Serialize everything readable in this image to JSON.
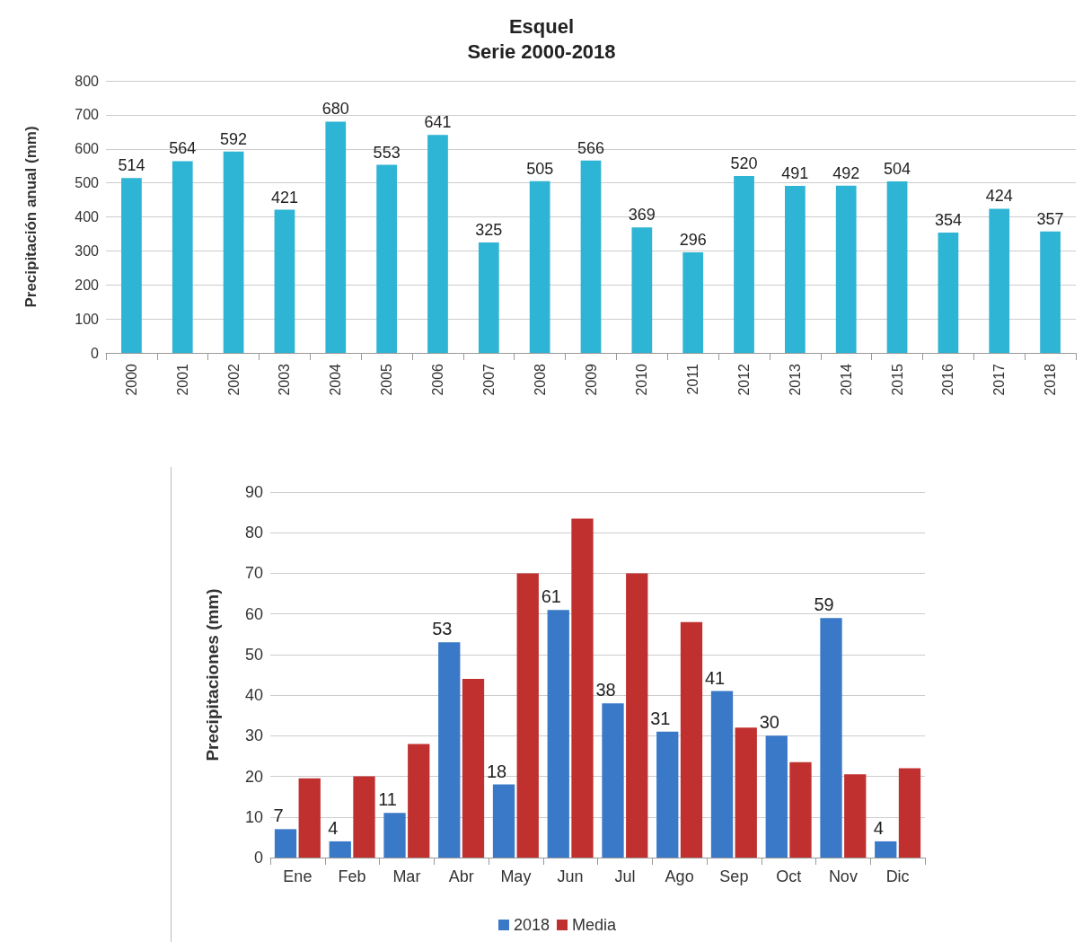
{
  "chart_data": [
    {
      "type": "bar",
      "title": "Esquel\nSerie 2000-2018",
      "ylabel": "Precipitación anual (mm)",
      "categories": [
        "2000",
        "2001",
        "2002",
        "2003",
        "2004",
        "2005",
        "2006",
        "2007",
        "2008",
        "2009",
        "2010",
        "2011",
        "2012",
        "2013",
        "2014",
        "2015",
        "2016",
        "2017",
        "2018"
      ],
      "series": [
        {
          "color": "#2eb4d4",
          "values": [
            514,
            564,
            592,
            421,
            680,
            553,
            641,
            325,
            505,
            566,
            369,
            296,
            520,
            491,
            492,
            504,
            354,
            424,
            357
          ]
        }
      ],
      "ylim": [
        0,
        800
      ],
      "yticks": [
        0,
        100,
        200,
        300,
        400,
        500,
        600,
        700,
        800
      ],
      "grid": "y",
      "data_labels": true
    },
    {
      "type": "bar",
      "ylabel": "Precipitaciones (mm)",
      "categories": [
        "Ene",
        "Feb",
        "Mar",
        "Abr",
        "May",
        "Jun",
        "Jul",
        "Ago",
        "Sep",
        "Oct",
        "Nov",
        "Dic"
      ],
      "series": [
        {
          "name": "2018",
          "color": "#3a78c8",
          "values": [
            7,
            4,
            11,
            53,
            18,
            61,
            38,
            31,
            41,
            30,
            59,
            4
          ],
          "value_labels": [
            "7",
            "4",
            "11",
            "53",
            "18",
            "61",
            "38",
            "31",
            "41",
            "30",
            "59",
            "4"
          ]
        },
        {
          "name": "Media",
          "color": "#c0302f",
          "values": [
            19.5,
            20,
            28,
            44,
            70,
            83.5,
            70,
            58,
            32,
            23.5,
            20.5,
            22
          ]
        }
      ],
      "ylim": [
        0,
        90
      ],
      "yticks": [
        0,
        10,
        20,
        30,
        40,
        50,
        60,
        70,
        80,
        90
      ],
      "grid": "y",
      "legend": "bottom"
    }
  ]
}
